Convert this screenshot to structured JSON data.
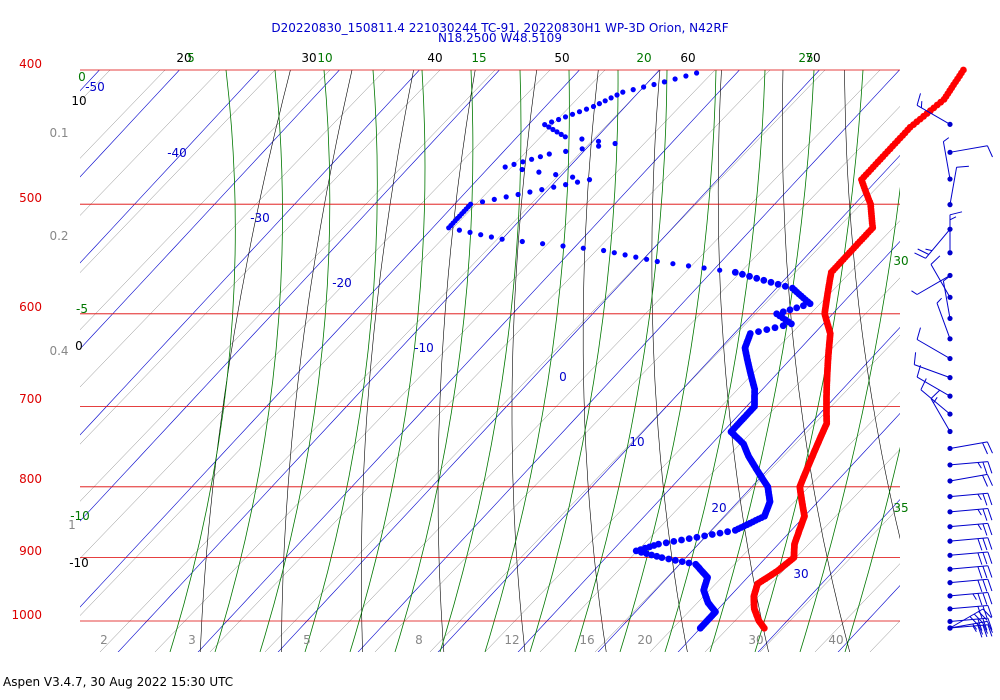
{
  "header": {
    "title_line1": "D20220830_150811.4 221030244 TC-91, 20220830H1 WP-3D Orion, N42RF",
    "title_line2": "N18.2500 W48.5109"
  },
  "footer": {
    "text": "Aspen V3.4.7, 30 Aug 2022  15:30 UTC"
  },
  "colors": {
    "isobar": "#dd0000",
    "isotherm": "#0000cc",
    "dry_adiabat": "#000000",
    "moist_adiabat": "#007700",
    "mixing_ratio": "#888888",
    "temperature": "#ff0000",
    "dewpoint": "#0000ff",
    "wind_barb": "#0000cc"
  },
  "chart_data": {
    "type": "scatter",
    "pressure_labels": [
      "400",
      "500",
      "600",
      "700",
      "800",
      "900",
      "1000"
    ],
    "isotherm_labels": [
      "-50",
      "-40",
      "-30",
      "-20",
      "-10",
      "0",
      "10",
      "20",
      "30"
    ],
    "dry_adiabat_top_labels": [
      "20",
      "30",
      "40",
      "50",
      "60",
      "70"
    ],
    "dry_adiabat_left_labels": [
      "10",
      "0",
      "-10"
    ],
    "moist_adiabat_top_labels": [
      "5",
      "10",
      "15",
      "20",
      "25"
    ],
    "moist_adiabat_left_labels": [
      "0",
      "-5",
      "-10"
    ],
    "moist_adiabat_right_labels": [
      "30",
      "35"
    ],
    "mixing_ratio_left_labels": [
      "0.1",
      "0.2",
      "0.4",
      "1"
    ],
    "mixing_ratio_bottom_labels": [
      "2",
      "3",
      "5",
      "8",
      "12",
      "16",
      "20",
      "30",
      "40"
    ],
    "temperature_profile": {
      "pressure": [
        400,
        420,
        440,
        460,
        480,
        500,
        520,
        540,
        560,
        580,
        600,
        620,
        640,
        660,
        680,
        700,
        720,
        740,
        760,
        780,
        800,
        820,
        840,
        860,
        880,
        900,
        920,
        940,
        960,
        980,
        1000,
        1012
      ],
      "temperature": [
        -12,
        -11,
        -12,
        -12,
        -12,
        -8,
        -5,
        -5,
        -5,
        -3,
        -1,
        2,
        4,
        6,
        8,
        10,
        12,
        13,
        14,
        15,
        16,
        18,
        20,
        21,
        22,
        23.5,
        23,
        22,
        23,
        24.5,
        26.5,
        28
      ]
    },
    "dewpoint_profile": {
      "pressure": [
        402,
        408,
        415,
        425,
        438,
        447,
        452,
        460,
        470,
        480,
        500,
        520,
        530,
        540,
        550,
        560,
        575,
        590,
        600,
        610,
        620,
        635,
        650,
        665,
        680,
        700,
        715,
        730,
        745,
        760,
        780,
        800,
        820,
        840,
        860,
        880,
        890,
        900,
        910,
        930,
        950,
        970,
        985,
        1000,
        1012
      ],
      "dewpoint": [
        -45,
        -48,
        -52,
        -54,
        -58,
        -54,
        -47,
        -54,
        -58,
        -46,
        -58,
        -58,
        -50,
        -36,
        -28,
        -17,
        -8,
        -4,
        -7,
        -4,
        -8,
        -7,
        -5,
        -3,
        -1,
        1,
        1,
        1,
        4,
        6,
        9,
        12,
        14,
        15,
        13,
        5,
        3,
        7,
        12,
        15,
        16,
        18,
        20,
        20,
        20
      ]
    },
    "wind_barbs": {
      "pressure": [
        420,
        440,
        460,
        480,
        500,
        520,
        540,
        560,
        580,
        600,
        620,
        640,
        660,
        680,
        700,
        720,
        740,
        760,
        780,
        800,
        820,
        840,
        860,
        880,
        900,
        920,
        940,
        960,
        980,
        1000,
        1010
      ],
      "speed_kt": [
        15,
        10,
        5,
        10,
        25,
        15,
        5,
        10,
        5,
        5,
        10,
        10,
        10,
        10,
        15,
        20,
        25,
        20,
        25,
        25,
        25,
        30,
        30,
        30,
        30,
        35,
        30,
        30,
        35,
        35,
        40
      ],
      "direction_deg": [
        300,
        80,
        350,
        10,
        220,
        0,
        240,
        330,
        350,
        340,
        300,
        290,
        300,
        310,
        330,
        80,
        85,
        80,
        85,
        85,
        85,
        85,
        85,
        85,
        85,
        85,
        85,
        85,
        85,
        80,
        60
      ]
    }
  }
}
